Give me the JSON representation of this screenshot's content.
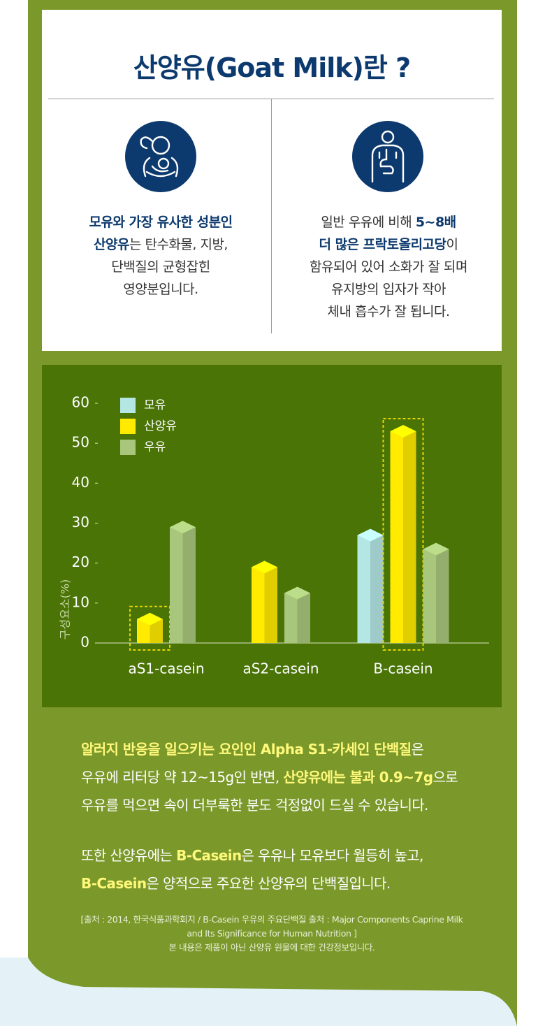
{
  "header": {
    "title": "산양유(Goat Milk)란 ?"
  },
  "features": [
    {
      "lines": [
        [
          "모유와 가장 유사한 성분인"
        ],
        [
          "산양유",
          "는 탄수화물, 지방,"
        ],
        [
          "단백질의 균형잡힌"
        ],
        [
          "영양분입니다."
        ]
      ]
    },
    {
      "lines": [
        [
          "일반 우유에 비해 ",
          "5~8배"
        ],
        [
          "더 많은 프락토올리고당",
          "이"
        ],
        [
          "함유되어 있어 소화가 잘 되며"
        ],
        [
          "유지방의 입자가 작아"
        ],
        [
          "체내 흡수가 잘 됩니다."
        ]
      ]
    }
  ],
  "chart_data": {
    "type": "bar",
    "y_label": "구성요소(%)",
    "categories": [
      "aS1-casein",
      "aS2-casein",
      "B-casein"
    ],
    "series": [
      {
        "name": "모유",
        "color": "#b4e6e4",
        "values": [
          null,
          null,
          27
        ]
      },
      {
        "name": "산양유",
        "color": "#ffea00",
        "values": [
          6,
          19,
          53
        ]
      },
      {
        "name": "우유",
        "color": "#a8c67c",
        "values": [
          29,
          12.5,
          23.5
        ]
      }
    ],
    "ylim": [
      0,
      60
    ],
    "yticks": [
      0,
      10,
      20,
      30,
      40,
      50,
      60
    ]
  },
  "body": {
    "paragraphs": [
      [
        [
          "알러지 반응을 일으키는 요인인 Alpha S1-카세인 단백질",
          "은"
        ],
        [
          "우유에 리터당 약 12~15g인 반면, ",
          "산양유에는 불과 0.9~7g",
          "으로"
        ],
        [
          "우유를 먹으면 속이 더부룩한 분도 걱정없이 드실 수 있습니다."
        ]
      ],
      [
        [
          "또한 산양유에는 ",
          "B-Casein",
          "은 우유나 모유보다 월등히 높고,"
        ],
        [
          "B-Casein",
          "은 양적으로 주요한 산양유의 단백질입니다."
        ]
      ]
    ]
  },
  "notes": [
    "[출처 : 2014, 한국식품과학회지 / B-Casein 우유의 주요단백질 출처 : Major Components Caprine Milk",
    "and Its Significance for Human Nutrition ]",
    "본 내용은 제품이 아닌 산양유 원물에 대한 건강정보입니다."
  ]
}
